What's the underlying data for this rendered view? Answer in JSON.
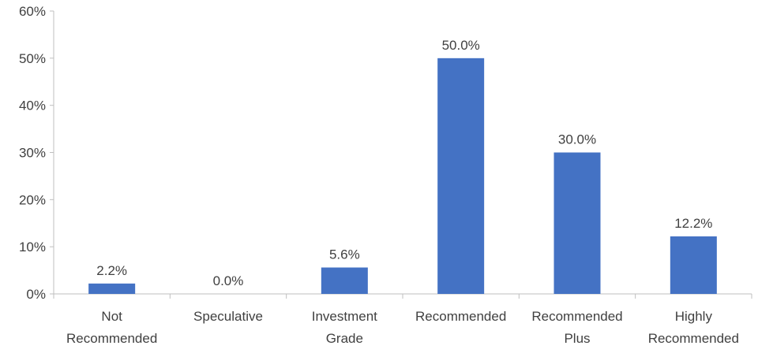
{
  "chart_data": {
    "type": "bar",
    "categories": [
      [
        "Not",
        "Recommended"
      ],
      [
        "Speculative"
      ],
      [
        "Investment",
        "Grade"
      ],
      [
        "Recommended"
      ],
      [
        "Recommended",
        "Plus"
      ],
      [
        "Highly",
        "Recommended"
      ]
    ],
    "values": [
      2.2,
      0.0,
      5.6,
      50.0,
      30.0,
      12.2
    ],
    "data_labels": [
      "2.2%",
      "0.0%",
      "5.6%",
      "50.0%",
      "30.0%",
      "12.2%"
    ],
    "yticks": [
      "0%",
      "10%",
      "20%",
      "30%",
      "40%",
      "50%",
      "60%"
    ],
    "ylim": [
      0,
      60
    ],
    "title": "",
    "xlabel": "",
    "ylabel": "",
    "grid": false,
    "legend": "none",
    "colors": {
      "bar": "#4472C4",
      "axis": "#BFBFBF",
      "text": "#404040"
    }
  }
}
